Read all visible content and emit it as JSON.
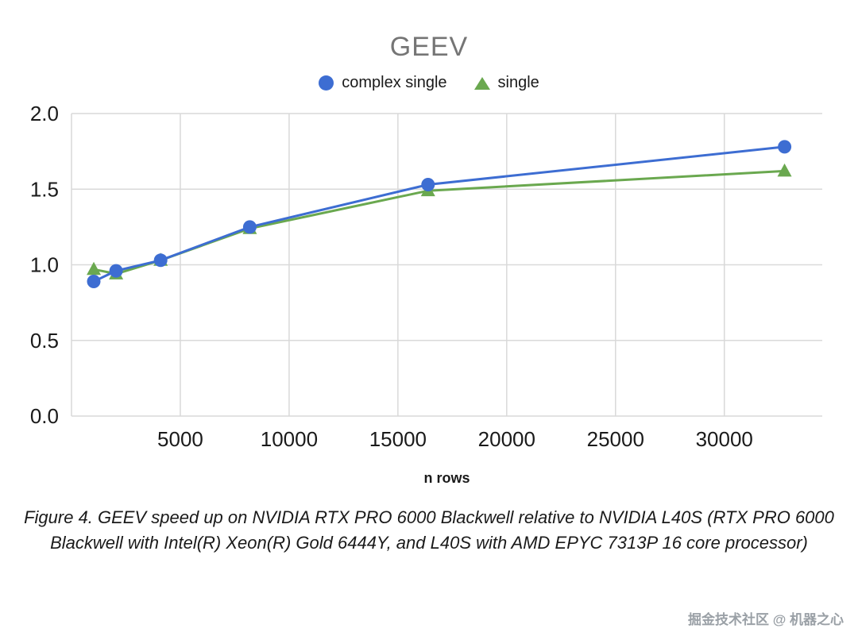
{
  "chart_data": {
    "type": "line",
    "title": "GEEV",
    "xlabel": "n rows",
    "x": [
      1024,
      2048,
      4096,
      8192,
      16384,
      32768
    ],
    "series": [
      {
        "name": "complex single",
        "marker": "circle",
        "color": "#3d6dd2",
        "values": [
          0.89,
          0.96,
          1.03,
          1.25,
          1.53,
          1.78
        ]
      },
      {
        "name": "single",
        "marker": "triangle",
        "color": "#6aa84f",
        "values": [
          0.97,
          0.94,
          1.03,
          1.24,
          1.49,
          1.62
        ]
      }
    ],
    "xlim": [
      0,
      34500
    ],
    "ylim": [
      0,
      2
    ],
    "xticks": [
      5000,
      10000,
      15000,
      20000,
      25000,
      30000
    ],
    "yticks": [
      0,
      0.5,
      1,
      1.5,
      2
    ],
    "grid": true,
    "grid_color": "#d9d9d9",
    "tick_label_color": "#1a1a1a",
    "legend_position": "top"
  },
  "caption": "Figure 4. GEEV speed up on NVIDIA RTX PRO 6000 Blackwell relative to NVIDIA L40S (RTX PRO 6000 Blackwell with Intel(R) Xeon(R) Gold 6444Y, and L40S with AMD EPYC 7313P 16 core processor)",
  "watermark": "掘金技术社区 @ 机器之心"
}
